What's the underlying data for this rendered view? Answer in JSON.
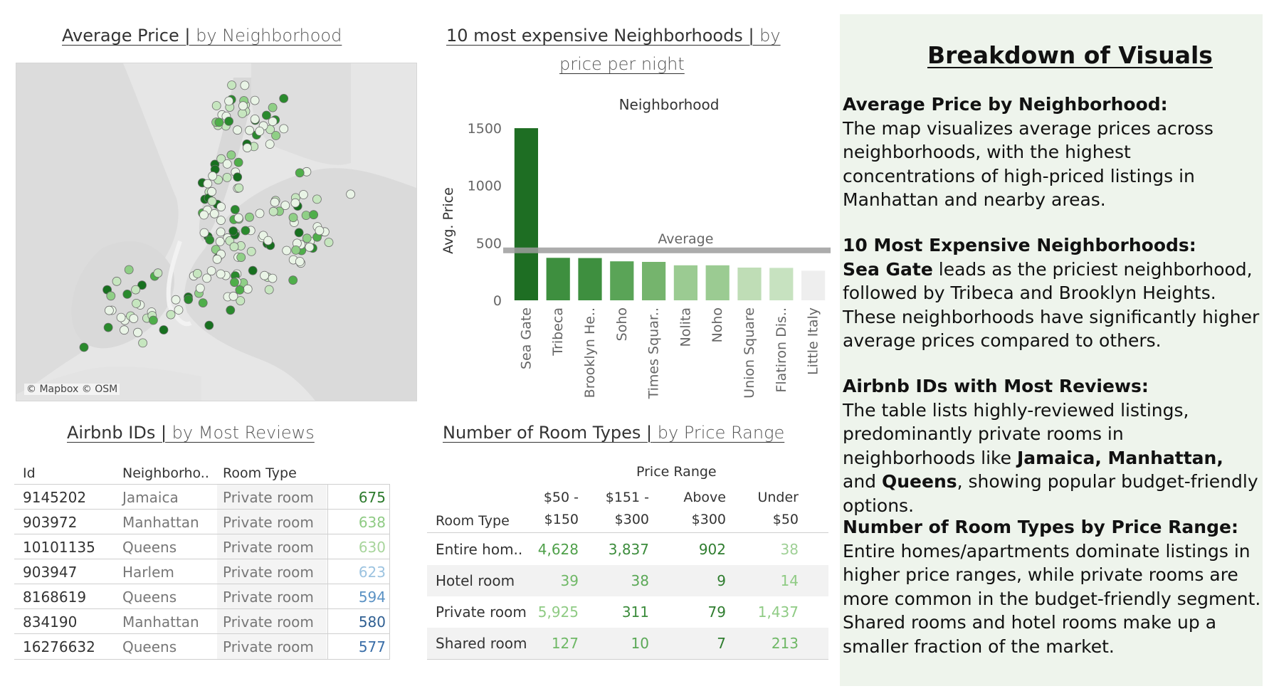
{
  "map": {
    "title_bold": "Average Price |",
    "title_sub": " by Neighborhood",
    "credit": "© Mapbox © OSM",
    "point_colors": [
      "#e9f4e6",
      "#c6e6bf",
      "#8fcf86",
      "#4fae4a",
      "#2a8a2d",
      "#17701f"
    ]
  },
  "bar_chart": {
    "title_line1_bold": "10 most expensive Neighborhoods |",
    "title_line1_sub": " by",
    "title_line2_sub": "price per night",
    "header": "Neighborhood",
    "ylabel": "Avg. Price",
    "ref_label": "Average"
  },
  "chart_data": {
    "type": "bar",
    "title": "10 most expensive Neighborhoods | by price per night",
    "xlabel": "Neighborhood",
    "ylabel": "Avg. Price",
    "categories": [
      "Sea Gate",
      "Tribeca",
      "Brooklyn He..",
      "Soho",
      "Times Squar..",
      "Nolita",
      "Noho",
      "Union Square",
      "Flatiron Dis..",
      "Little Italy"
    ],
    "values": [
      1500,
      370,
      368,
      340,
      335,
      305,
      305,
      285,
      283,
      258
    ],
    "colors": [
      "#1e6e23",
      "#3e8f3f",
      "#3e8f3f",
      "#5aa457",
      "#75b46d",
      "#9bcb92",
      "#9bcb92",
      "#bfddb6",
      "#c7e2c0",
      "#eeeeee"
    ],
    "ylim": [
      0,
      1550
    ],
    "yticks": [
      0,
      500,
      1000,
      1500
    ],
    "reference_line": {
      "label": "Average",
      "value": 435
    },
    "grid": false
  },
  "reviews": {
    "title_bold": "Airbnb IDs |",
    "title_sub": " by Most Reviews",
    "headers": [
      "Id",
      "Neighborho..",
      "Room Type"
    ],
    "rows": [
      {
        "id": "9145202",
        "neighborhood": "Jamaica",
        "room_type": "Private room",
        "reviews": "675",
        "color": "#2c7a2c"
      },
      {
        "id": "903972",
        "neighborhood": "Manhattan",
        "room_type": "Private room",
        "reviews": "638",
        "color": "#8fcb84"
      },
      {
        "id": "10101135",
        "neighborhood": "Queens",
        "room_type": "Private room",
        "reviews": "630",
        "color": "#a8d59c"
      },
      {
        "id": "903947",
        "neighborhood": "Harlem",
        "room_type": "Private room",
        "reviews": "623",
        "color": "#9cc3e0"
      },
      {
        "id": "8168619",
        "neighborhood": "Queens",
        "room_type": "Private room",
        "reviews": "594",
        "color": "#5b92c4"
      },
      {
        "id": "834190",
        "neighborhood": "Manhattan",
        "room_type": "Private room",
        "reviews": "580",
        "color": "#2f5f92"
      },
      {
        "id": "16276632",
        "neighborhood": "Queens",
        "room_type": "Private room",
        "reviews": "577",
        "color": "#3a6ea8"
      }
    ]
  },
  "room_types": {
    "title_bold": "Number of Room Types |",
    "title_sub": " by Price Range",
    "group_header": "Price Range",
    "row_header": "Room Type",
    "columns": [
      {
        "line1": "$50 -",
        "line2": "$150"
      },
      {
        "line1": "$151 -",
        "line2": "$300"
      },
      {
        "line1": "Above",
        "line2": "$300"
      },
      {
        "line1": "Under",
        "line2": "$50"
      }
    ],
    "rows": [
      {
        "label": "Entire hom..",
        "values": [
          "4,628",
          "3,837",
          "902",
          "38"
        ],
        "colors": [
          "#4fa04a",
          "#3c8c3c",
          "#2f7d2f",
          "#9fd096"
        ]
      },
      {
        "label": "Hotel room",
        "values": [
          "39",
          "38",
          "9",
          "14"
        ],
        "colors": [
          "#6fb866",
          "#5aa856",
          "#2f7d2f",
          "#8fcb84"
        ]
      },
      {
        "label": "Private room",
        "values": [
          "5,925",
          "311",
          "79",
          "1,437"
        ],
        "colors": [
          "#8fcb84",
          "#3c8c3c",
          "#2f7d2f",
          "#8fcb84"
        ]
      },
      {
        "label": "Shared room",
        "values": [
          "127",
          "10",
          "7",
          "213"
        ],
        "colors": [
          "#6fb866",
          "#5aa856",
          "#2f7d2f",
          "#6fb866"
        ]
      }
    ]
  },
  "sidebar": {
    "title": "Breakdown of Visuals",
    "s1_heading": "Average Price by Neighborhood:",
    "s1_body": "The map visualizes average prices across neighborhoods, with the highest concentrations of high-priced listings in Manhattan and nearby areas.",
    "s2_heading": "10 Most Expensive Neighborhoods:",
    "s2_bold": "Sea Gate",
    "s2_body": " leads as the priciest neighborhood, followed by Tribeca and Brooklyn Heights. These neighborhoods have significantly higher average prices compared to others.",
    "s3_heading": "Airbnb IDs with Most Reviews:",
    "s3_body_a": "The table lists highly-reviewed listings, predominantly private rooms in neighborhoods like ",
    "s3_bold_a": "Jamaica, Manhattan,",
    "s3_body_b": " and ",
    "s3_bold_b": "Queens",
    "s3_body_c": ", showing popular budget-friendly options.",
    "s4_heading": "Number of Room Types by Price Range:",
    "s4_body": "Entire homes/apartments dominate listings in higher price ranges, while private rooms are more common in the budget-friendly segment. Shared rooms and hotel rooms make up a smaller fraction of the market."
  }
}
